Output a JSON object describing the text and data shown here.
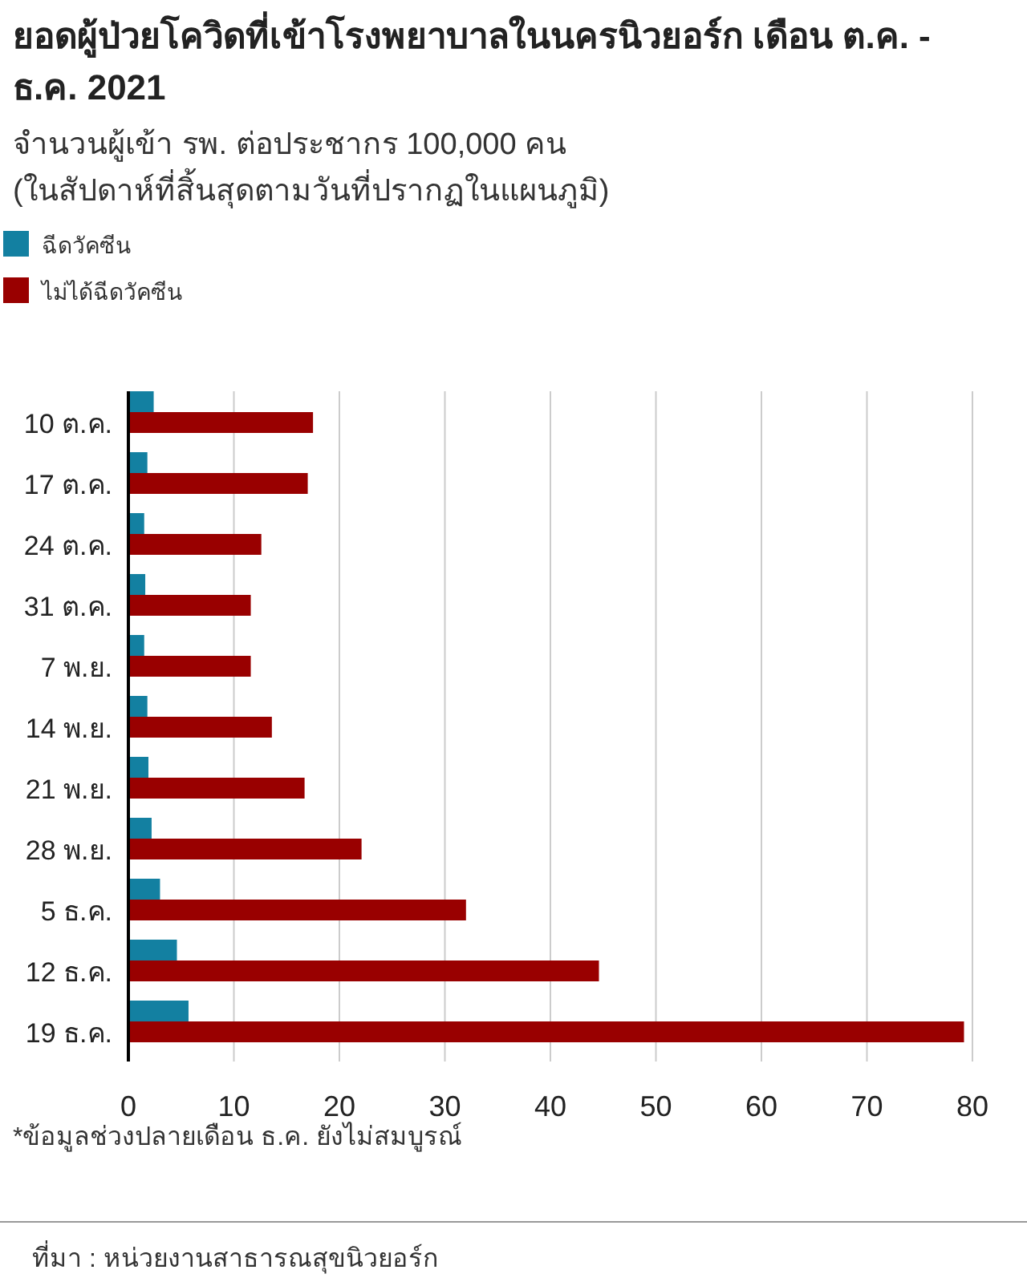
{
  "chart_data": {
    "type": "bar",
    "orientation": "horizontal",
    "title": "ยอดผู้ป่วยโควิดที่เข้าโรงพยาบาลในนครนิวยอร์ก เดือน ต.ค. - ธ.ค. 2021",
    "subtitle": "จำนวนผู้เข้า รพ. ต่อประชากร 100,000 คน (ในสัปดาห์ที่สิ้นสุดตามวันที่ปรากฏในแผนภูมิ)",
    "categories": [
      "10 ต.ค.",
      "17 ต.ค.",
      "24 ต.ค.",
      "31 ต.ค.",
      "7 พ.ย.",
      "14 พ.ย.",
      "21 พ.ย.",
      "28 พ.ย.",
      "5 ธ.ค.",
      "12 ธ.ค.",
      "19 ธ.ค."
    ],
    "series": [
      {
        "name": "ฉีดวัคซีน",
        "color": "#1380a1",
        "values": [
          2.4,
          1.8,
          1.5,
          1.6,
          1.5,
          1.8,
          1.9,
          2.2,
          3.0,
          4.6,
          5.7
        ]
      },
      {
        "name": "ไม่ได้ฉีดวัคซีน",
        "color": "#990000",
        "values": [
          17.5,
          17.0,
          12.6,
          11.6,
          11.6,
          13.6,
          16.7,
          22.1,
          32.0,
          44.6,
          79.2
        ]
      }
    ],
    "xlim": [
      0,
      80
    ],
    "xticks": [
      0,
      10,
      20,
      30,
      40,
      50,
      60,
      70,
      80
    ],
    "grid": "x",
    "legend": "top left",
    "annotations": [
      "*ข้อมูลช่วงปลายเดือน ธ.ค. ยังไม่สมบูรณ์",
      "ที่มา : หน่วยงานสาธารณสุขนิวยอร์ก"
    ]
  }
}
